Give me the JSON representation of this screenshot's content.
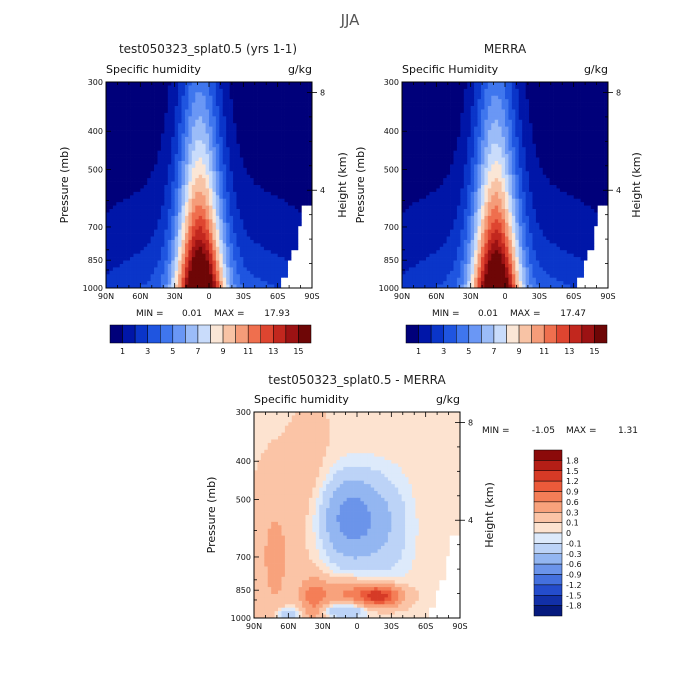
{
  "figure_title": "JJA",
  "chart_data": [
    {
      "type": "heatmap",
      "id": "model",
      "title": "test050323_splat0.5 (yrs 1-1)",
      "variable": "Specific humidity",
      "units": "g/kg",
      "ylabel": "Pressure (mb)",
      "ylabel_right": "Height (km)",
      "x_ticks": [
        "90N",
        "60N",
        "30N",
        "0",
        "30S",
        "60S",
        "90S"
      ],
      "y_ticks": [
        "300",
        "400",
        "500",
        "700",
        "850",
        "1000"
      ],
      "y_right_ticks": [
        "8",
        "4"
      ],
      "stats": {
        "min_label": "MIN =",
        "min": "0.01",
        "max_label": "MAX =",
        "max": "17.93"
      },
      "colorbar_labels": [
        "1",
        "3",
        "5",
        "7",
        "9",
        "11",
        "13",
        "15"
      ],
      "colorbar_colors": [
        "#00007a",
        "#0016a8",
        "#0a35c9",
        "#1f55e0",
        "#3f76ee",
        "#6a97f5",
        "#9bbcf8",
        "#c9dcfb",
        "#fae6d6",
        "#f8c3a5",
        "#f59c79",
        "#ef6f4e",
        "#de4530",
        "#c2271e",
        "#9c1213",
        "#6e0606"
      ],
      "peak_value": 17.93,
      "peak_lat": 8
    },
    {
      "type": "heatmap",
      "id": "merra",
      "title": "MERRA",
      "variable": "Specific Humidity",
      "units": "g/kg",
      "ylabel": "Pressure (mb)",
      "ylabel_right": "Height (km)",
      "x_ticks": [
        "90N",
        "60N",
        "30N",
        "0",
        "30S",
        "60S",
        "90S"
      ],
      "y_ticks": [
        "300",
        "400",
        "500",
        "700",
        "850",
        "1000"
      ],
      "y_right_ticks": [
        "8",
        "4"
      ],
      "stats": {
        "min_label": "MIN =",
        "min": "0.01",
        "max_label": "MAX =",
        "max": "17.47"
      },
      "colorbar_labels": [
        "1",
        "3",
        "5",
        "7",
        "9",
        "11",
        "13",
        "15"
      ],
      "colorbar_colors": [
        "#00007a",
        "#0016a8",
        "#0a35c9",
        "#1f55e0",
        "#3f76ee",
        "#6a97f5",
        "#9bbcf8",
        "#c9dcfb",
        "#fae6d6",
        "#f8c3a5",
        "#f59c79",
        "#ef6f4e",
        "#de4530",
        "#c2271e",
        "#9c1213",
        "#6e0606"
      ],
      "peak_value": 17.47,
      "peak_lat": 8
    },
    {
      "type": "heatmap",
      "id": "diff",
      "title": "test050323_splat0.5 - MERRA",
      "variable": "Specific humidity",
      "units": "g/kg",
      "ylabel": "Pressure (mb)",
      "ylabel_right": "Height (km)",
      "x_ticks": [
        "90N",
        "60N",
        "30N",
        "0",
        "30S",
        "60S",
        "90S"
      ],
      "y_ticks": [
        "300",
        "400",
        "500",
        "700",
        "850",
        "1000"
      ],
      "y_right_ticks": [
        "8",
        "4"
      ],
      "stats": {
        "min_label": "MIN =",
        "min": "-1.05",
        "max_label": "MAX =",
        "max": "1.31"
      },
      "colorbar_labels": [
        "1.8",
        "1.5",
        "1.2",
        "0.9",
        "0.6",
        "0.3",
        "0.1",
        "0",
        "-0.1",
        "-0.3",
        "-0.6",
        "-0.9",
        "-1.2",
        "-1.5",
        "-1.8"
      ],
      "colorbar_colors": [
        "#8b0a0a",
        "#b41e16",
        "#d63a26",
        "#eb5a3a",
        "#f47e57",
        "#f8a27c",
        "#fbc4a6",
        "#fde3d0",
        "#ddeafb",
        "#bcd3f7",
        "#93b6f1",
        "#6b94ea",
        "#4470de",
        "#244ccc",
        "#1230a8",
        "#061a7e"
      ]
    }
  ]
}
